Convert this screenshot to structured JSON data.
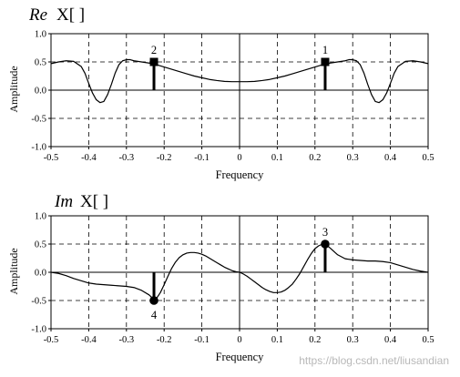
{
  "chart_data": [
    {
      "type": "line",
      "title_italic": "Re",
      "title_rest": "X[ ]",
      "xlabel": "Frequency",
      "ylabel": "Amplitude",
      "xlim": [
        -0.5,
        0.5
      ],
      "ylim": [
        -1.0,
        1.0
      ],
      "xticks": [
        "-0.5",
        "-0.4",
        "-0.3",
        "-0.2",
        "-0.1",
        "0",
        "0.1",
        "0.2",
        "0.3",
        "0.4",
        "0.5"
      ],
      "yticks": [
        "1.0",
        "0.5",
        "0.0",
        "-0.5",
        "-1.0"
      ],
      "grid": "dashed",
      "series": [
        {
          "x": [
            -0.5,
            -0.48,
            -0.46,
            -0.44,
            -0.42,
            -0.41,
            -0.4,
            -0.39,
            -0.38,
            -0.37,
            -0.36,
            -0.35,
            -0.34,
            -0.33,
            -0.32,
            -0.31,
            -0.3,
            -0.29,
            -0.28,
            -0.26,
            -0.24,
            -0.22,
            -0.2,
            -0.18,
            -0.16,
            -0.14,
            -0.12,
            -0.1,
            -0.08,
            -0.06,
            -0.04,
            -0.02,
            0,
            0.02,
            0.04,
            0.06,
            0.08,
            0.1,
            0.12,
            0.14,
            0.16,
            0.18,
            0.2,
            0.22,
            0.24,
            0.26,
            0.28,
            0.29,
            0.3,
            0.31,
            0.32,
            0.33,
            0.34,
            0.35,
            0.36,
            0.37,
            0.38,
            0.39,
            0.4,
            0.41,
            0.42,
            0.44,
            0.46,
            0.48,
            0.5
          ],
          "y": [
            0.47,
            0.5,
            0.52,
            0.51,
            0.42,
            0.3,
            0.12,
            -0.05,
            -0.17,
            -0.22,
            -0.2,
            -0.08,
            0.1,
            0.3,
            0.45,
            0.52,
            0.54,
            0.54,
            0.52,
            0.5,
            0.48,
            0.45,
            0.41,
            0.37,
            0.33,
            0.29,
            0.25,
            0.22,
            0.19,
            0.17,
            0.155,
            0.15,
            0.15,
            0.15,
            0.155,
            0.17,
            0.19,
            0.22,
            0.25,
            0.29,
            0.33,
            0.37,
            0.41,
            0.45,
            0.48,
            0.5,
            0.52,
            0.54,
            0.54,
            0.52,
            0.45,
            0.3,
            0.1,
            -0.08,
            -0.2,
            -0.22,
            -0.17,
            -0.05,
            0.12,
            0.3,
            0.42,
            0.51,
            0.52,
            0.5,
            0.47
          ]
        }
      ],
      "markers": [
        {
          "label": "2",
          "shape": "square",
          "x": -0.227,
          "y": 0.5
        },
        {
          "label": "1",
          "shape": "square",
          "x": 0.227,
          "y": 0.5
        }
      ]
    },
    {
      "type": "line",
      "title_italic": "Im",
      "title_rest": "X[ ]",
      "xlabel": "Frequency",
      "ylabel": "Amplitude",
      "xlim": [
        -0.5,
        0.5
      ],
      "ylim": [
        -1.0,
        1.0
      ],
      "xticks": [
        "-0.5",
        "-0.4",
        "-0.3",
        "-0.2",
        "-0.1",
        "0",
        "0.1",
        "0.2",
        "0.3",
        "0.4",
        "0.5"
      ],
      "yticks": [
        "1.0",
        "0.5",
        "0.0",
        "-0.5",
        "-1.0"
      ],
      "grid": "dashed",
      "series": [
        {
          "x": [
            -0.5,
            -0.48,
            -0.46,
            -0.44,
            -0.42,
            -0.4,
            -0.38,
            -0.36,
            -0.34,
            -0.32,
            -0.3,
            -0.28,
            -0.26,
            -0.24,
            -0.227,
            -0.22,
            -0.21,
            -0.2,
            -0.19,
            -0.18,
            -0.17,
            -0.16,
            -0.15,
            -0.14,
            -0.13,
            -0.12,
            -0.11,
            -0.1,
            -0.09,
            -0.08,
            -0.07,
            -0.06,
            -0.05,
            -0.04,
            -0.03,
            -0.02,
            -0.01,
            0,
            0.01,
            0.02,
            0.03,
            0.04,
            0.05,
            0.06,
            0.07,
            0.08,
            0.09,
            0.1,
            0.11,
            0.12,
            0.13,
            0.14,
            0.15,
            0.16,
            0.17,
            0.18,
            0.19,
            0.2,
            0.21,
            0.22,
            0.227,
            0.24,
            0.26,
            0.28,
            0.3,
            0.32,
            0.34,
            0.36,
            0.38,
            0.4,
            0.42,
            0.44,
            0.46,
            0.48,
            0.5
          ],
          "y": [
            0.0,
            -0.02,
            -0.06,
            -0.11,
            -0.15,
            -0.19,
            -0.21,
            -0.22,
            -0.23,
            -0.24,
            -0.25,
            -0.27,
            -0.32,
            -0.4,
            -0.48,
            -0.46,
            -0.36,
            -0.22,
            -0.07,
            0.07,
            0.18,
            0.26,
            0.31,
            0.34,
            0.35,
            0.35,
            0.34,
            0.32,
            0.29,
            0.25,
            0.21,
            0.17,
            0.13,
            0.09,
            0.06,
            0.03,
            0.01,
            0.0,
            -0.03,
            -0.07,
            -0.12,
            -0.17,
            -0.22,
            -0.27,
            -0.31,
            -0.34,
            -0.36,
            -0.36,
            -0.35,
            -0.32,
            -0.27,
            -0.21,
            -0.12,
            -0.02,
            0.1,
            0.22,
            0.33,
            0.42,
            0.47,
            0.5,
            0.5,
            0.43,
            0.31,
            0.24,
            0.22,
            0.21,
            0.2,
            0.2,
            0.19,
            0.17,
            0.13,
            0.09,
            0.05,
            0.02,
            0.0
          ]
        }
      ],
      "markers": [
        {
          "label": "4",
          "shape": "circle",
          "x": -0.227,
          "y": -0.5
        },
        {
          "label": "3",
          "shape": "circle",
          "x": 0.227,
          "y": 0.5
        }
      ]
    }
  ],
  "watermark": "https://blog.csdn.net/liusandian"
}
